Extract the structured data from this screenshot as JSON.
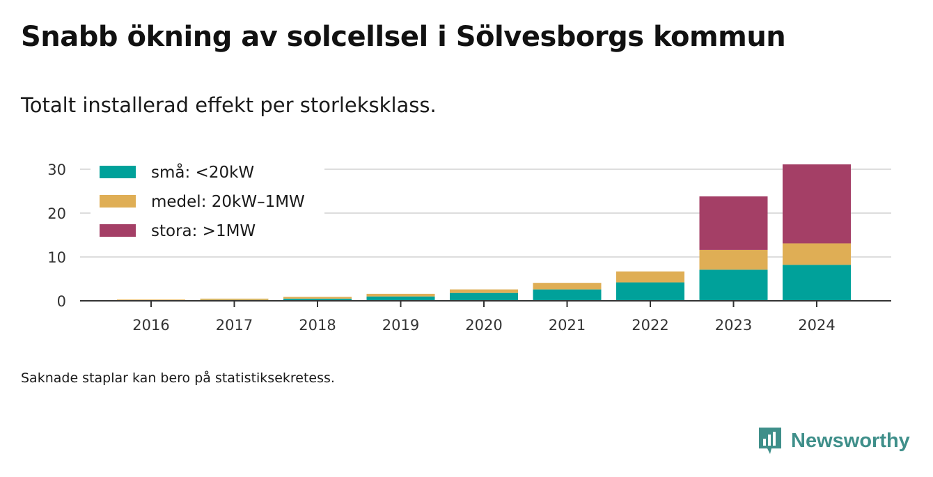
{
  "title": "Snabb ökning av solcellsel i Sölvesborgs kommun",
  "subtitle": "Totalt installerad effekt per storleksklass.",
  "note": "Saknade staplar kan bero på statistiksekretess.",
  "brand": {
    "name": "Newsworthy",
    "color": "#3f8f8a"
  },
  "chart_data": {
    "type": "bar",
    "stacked": true,
    "categories": [
      "2016",
      "2017",
      "2018",
      "2019",
      "2020",
      "2021",
      "2022",
      "2023",
      "2024"
    ],
    "series": [
      {
        "name": "små: <20kW",
        "color": "#00a19a",
        "values": [
          0.1,
          0.2,
          0.5,
          1.0,
          1.8,
          2.6,
          4.2,
          7.1,
          8.2
        ]
      },
      {
        "name": "medel: 20kW–1MW",
        "color": "#dfae55",
        "values": [
          0.2,
          0.3,
          0.4,
          0.6,
          0.8,
          1.5,
          2.5,
          4.5,
          4.9
        ]
      },
      {
        "name": "stora: >1MW",
        "color": "#a43f66",
        "values": [
          0,
          0,
          0,
          0,
          0,
          0,
          0,
          12.2,
          18.0
        ]
      }
    ],
    "yticks": [
      0,
      10,
      20,
      30
    ],
    "ylim": [
      0,
      31
    ],
    "grid": true,
    "legend_position": "top-left",
    "xlabel": "",
    "ylabel": ""
  }
}
